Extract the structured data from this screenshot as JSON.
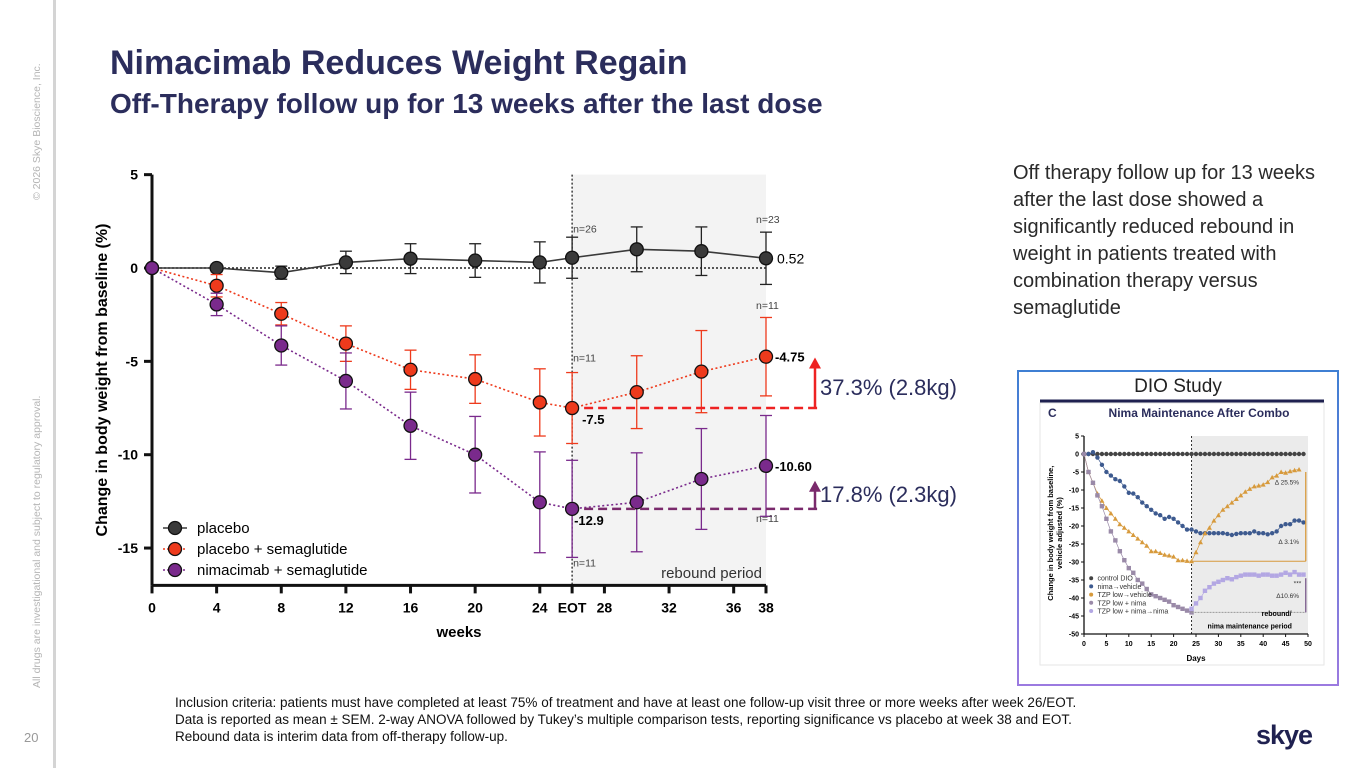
{
  "header": {
    "title": "Nimacimab Reduces Weight Regain",
    "subtitle": "Off-Therapy follow up for 13 weeks after the last dose"
  },
  "sidebar": {
    "copyright": "© 2026 Skye Bioscience, Inc.",
    "disclaimer": "All drugs are investigational and subject to regulatory approval.",
    "page_number": "20"
  },
  "side_text": "Off therapy follow up for 13 weeks after the last dose showed a significantly reduced rebound in weight in patients treated with combination therapy versus semaglutide",
  "footnote": [
    "Inclusion criteria: patients must have completed at least 75% of treatment and have at least one follow-up visit three or more weeks after week 26/EOT.",
    "Data is reported as mean ± SEM. 2-way ANOVA followed by Tukey’s multiple comparison tests, reporting significance vs placebo at week 38 and EOT.",
    "Rebound data is interim data from off-therapy follow-up."
  ],
  "logo": "skye",
  "chart_data": [
    {
      "type": "line",
      "xlabel": "weeks",
      "ylabel": "Change in body weight from baseline (%)",
      "xlim": [
        0,
        38
      ],
      "ylim": [
        -17,
        5
      ],
      "xticks": [
        {
          "v": 0,
          "label": "0"
        },
        {
          "v": 4,
          "label": "4"
        },
        {
          "v": 8,
          "label": "8"
        },
        {
          "v": 12,
          "label": "12"
        },
        {
          "v": 16,
          "label": "16"
        },
        {
          "v": 20,
          "label": "20"
        },
        {
          "v": 24,
          "label": "24"
        },
        {
          "v": 26,
          "label": "EOT"
        },
        {
          "v": 28,
          "label": "28"
        },
        {
          "v": 32,
          "label": "32"
        },
        {
          "v": 36,
          "label": "36"
        },
        {
          "v": 38,
          "label": "38"
        }
      ],
      "yticks": [
        5,
        0,
        -5,
        -10,
        -15
      ],
      "x": [
        0,
        4,
        8,
        12,
        16,
        20,
        24,
        26,
        30,
        34,
        38
      ],
      "rebound_label": "rebound period",
      "rebound_start": 26,
      "series": [
        {
          "name": "placebo",
          "color": "#3a3a3a",
          "line": "solid",
          "values": [
            0,
            0,
            -0.25,
            0.3,
            0.5,
            0.4,
            0.3,
            0.55,
            1.0,
            0.9,
            0.52
          ],
          "sem": [
            0,
            0.2,
            0.35,
            0.6,
            0.8,
            0.9,
            1.1,
            1.1,
            1.2,
            1.3,
            1.4
          ]
        },
        {
          "name": "placebo + semaglutide",
          "color": "#ee3a1c",
          "line": "dotted",
          "values": [
            0,
            -0.95,
            -2.45,
            -4.05,
            -5.45,
            -5.95,
            -7.2,
            -7.5,
            -6.65,
            -5.55,
            -4.75
          ],
          "sem": [
            0,
            0.6,
            0.6,
            0.95,
            1.05,
            1.3,
            1.8,
            1.9,
            1.95,
            2.2,
            2.1
          ]
        },
        {
          "name": "nimacimab + semaglutide",
          "color": "#7a2a8c",
          "line": "dotted",
          "values": [
            0,
            -1.95,
            -4.15,
            -6.05,
            -8.45,
            -10.0,
            -12.55,
            -12.9,
            -12.55,
            -11.3,
            -10.6
          ],
          "sem": [
            0,
            0.6,
            1.05,
            1.5,
            1.8,
            2.05,
            2.7,
            2.6,
            2.65,
            2.7,
            2.7
          ]
        }
      ],
      "annotations": {
        "placebo_end": "0.52",
        "sema_eot": "-7.5",
        "sema_end": "-4.75",
        "nima_eot": "-12.9",
        "nima_end": "-10.60",
        "n_labels": [
          {
            "x": 26,
            "y": 1.9,
            "text": "n=26"
          },
          {
            "x": 38,
            "y": 2.4,
            "text": "n=23"
          },
          {
            "x": 38,
            "y": -2.2,
            "text": "n=11"
          },
          {
            "x": 26,
            "y": -5.0,
            "text": "n=11"
          },
          {
            "x": 38,
            "y": -13.6,
            "text": "n=11"
          },
          {
            "x": 26,
            "y": -16.0,
            "text": "n=11"
          }
        ],
        "sema_rebound": {
          "text": "37.3% (2.8kg)",
          "color": "#ee2222"
        },
        "nima_rebound": {
          "text": "17.8% (2.3kg)",
          "color": "#7a2a6c"
        }
      }
    },
    {
      "type": "line",
      "study": "DIO Study",
      "panel": "C",
      "title": "Nima Maintenance After Combo",
      "xlabel": "Days",
      "ylabel": "Change in body weight from baseline, vehicle adjusted (%)",
      "xlim": [
        0,
        50
      ],
      "ylim": [
        -50,
        5
      ],
      "xticks": [
        0,
        5,
        10,
        15,
        20,
        25,
        30,
        35,
        40,
        45,
        50
      ],
      "yticks": [
        5,
        0,
        -5,
        -10,
        -15,
        -20,
        -25,
        -30,
        -35,
        -40,
        -45,
        -50
      ],
      "rebound_label": [
        "rebound/",
        "nima maintenance period"
      ],
      "series": [
        {
          "name": "control DIO",
          "color": "#444444",
          "marker": "circle",
          "start": 0,
          "values": [
            0,
            0,
            0,
            0,
            0,
            0,
            0,
            0,
            0,
            0,
            0,
            0,
            0,
            0,
            0,
            0,
            0,
            0,
            0,
            0,
            0,
            0,
            0,
            0,
            0,
            0,
            0,
            0,
            0,
            0,
            0,
            0,
            0,
            0,
            0,
            0,
            0,
            0,
            0,
            0,
            0,
            0,
            0,
            0,
            0,
            0,
            0,
            0,
            0,
            0
          ]
        },
        {
          "name": "nima→vehicle",
          "color": "#3d5a8f",
          "marker": "circle",
          "start": 0,
          "values": [
            0,
            0,
            0.5,
            -1,
            -3,
            -5,
            -6,
            -7,
            -7.5,
            -9,
            -10.8,
            -11,
            -12,
            -13.5,
            -14.5,
            -15.5,
            -16.5,
            -17,
            -18,
            -17.5,
            -18,
            -19,
            -20,
            -21,
            -21,
            -21.5,
            -22,
            -22,
            -22,
            -22,
            -22,
            -22,
            -22.2,
            -22.5,
            -22.2,
            -22,
            -22,
            -22,
            -21.5,
            -22,
            -22,
            -22.3,
            -22,
            -21.5,
            -20,
            -19.5,
            -19.5,
            -18.5,
            -18.5,
            -19
          ]
        },
        {
          "name": "TZP low→vehicle",
          "color": "#d79a3c",
          "marker": "triangle",
          "start": 0,
          "values": [
            0,
            -5,
            -8,
            -11,
            -13,
            -15,
            -16.5,
            -18,
            -19.5,
            -20.5,
            -21.5,
            -22.5,
            -23.5,
            -24.5,
            -25.5,
            -27,
            -27,
            -27.5,
            -28,
            -28.2,
            -28.5,
            -29.5,
            -29.5,
            -29.7,
            -29.8,
            -27.3,
            -24.5,
            -22,
            -20.5,
            -18.5,
            -17,
            -15.5,
            -14.5,
            -13.5,
            -12.5,
            -11.5,
            -10.5,
            -9.7,
            -9,
            -8.8,
            -8.5,
            -7.8,
            -6.5,
            -6,
            -5,
            -5.2,
            -4.8,
            -4.5,
            -4.3
          ]
        },
        {
          "name": "TZP low + nima",
          "color": "#9a8aa8",
          "marker": "square",
          "start": 0,
          "values": [
            0,
            -5,
            -8,
            -11.5,
            -14.5,
            -18,
            -21.5,
            -24,
            -27,
            -29.5,
            -31.7,
            -33,
            -35,
            -36,
            -37.5,
            -39,
            -39.5,
            -40,
            -40.5,
            -41,
            -42,
            -42.5,
            -43,
            -43.5,
            -44
          ]
        },
        {
          "name": "TZP low + nima→nima",
          "color": "#b3a7e3",
          "marker": "square",
          "start": 24,
          "values": [
            -43,
            -41.5,
            -40,
            -38,
            -37,
            -36,
            -35.5,
            -35,
            -34.5,
            -34.8,
            -34.2,
            -33.8,
            -33.5,
            -33.5,
            -33.5,
            -33.8,
            -33.5,
            -33.5,
            -33.8,
            -33.8,
            -33.5,
            -33,
            -33.5,
            -32.8,
            -33.5,
            -33.5
          ]
        }
      ],
      "annotations": {
        "tzp_vehicle_delta": "Δ 25.5%",
        "nima_vehicle_delta": "Δ 3.1%",
        "nima_nima_delta": "Δ10.6%",
        "significance": "***"
      }
    }
  ]
}
